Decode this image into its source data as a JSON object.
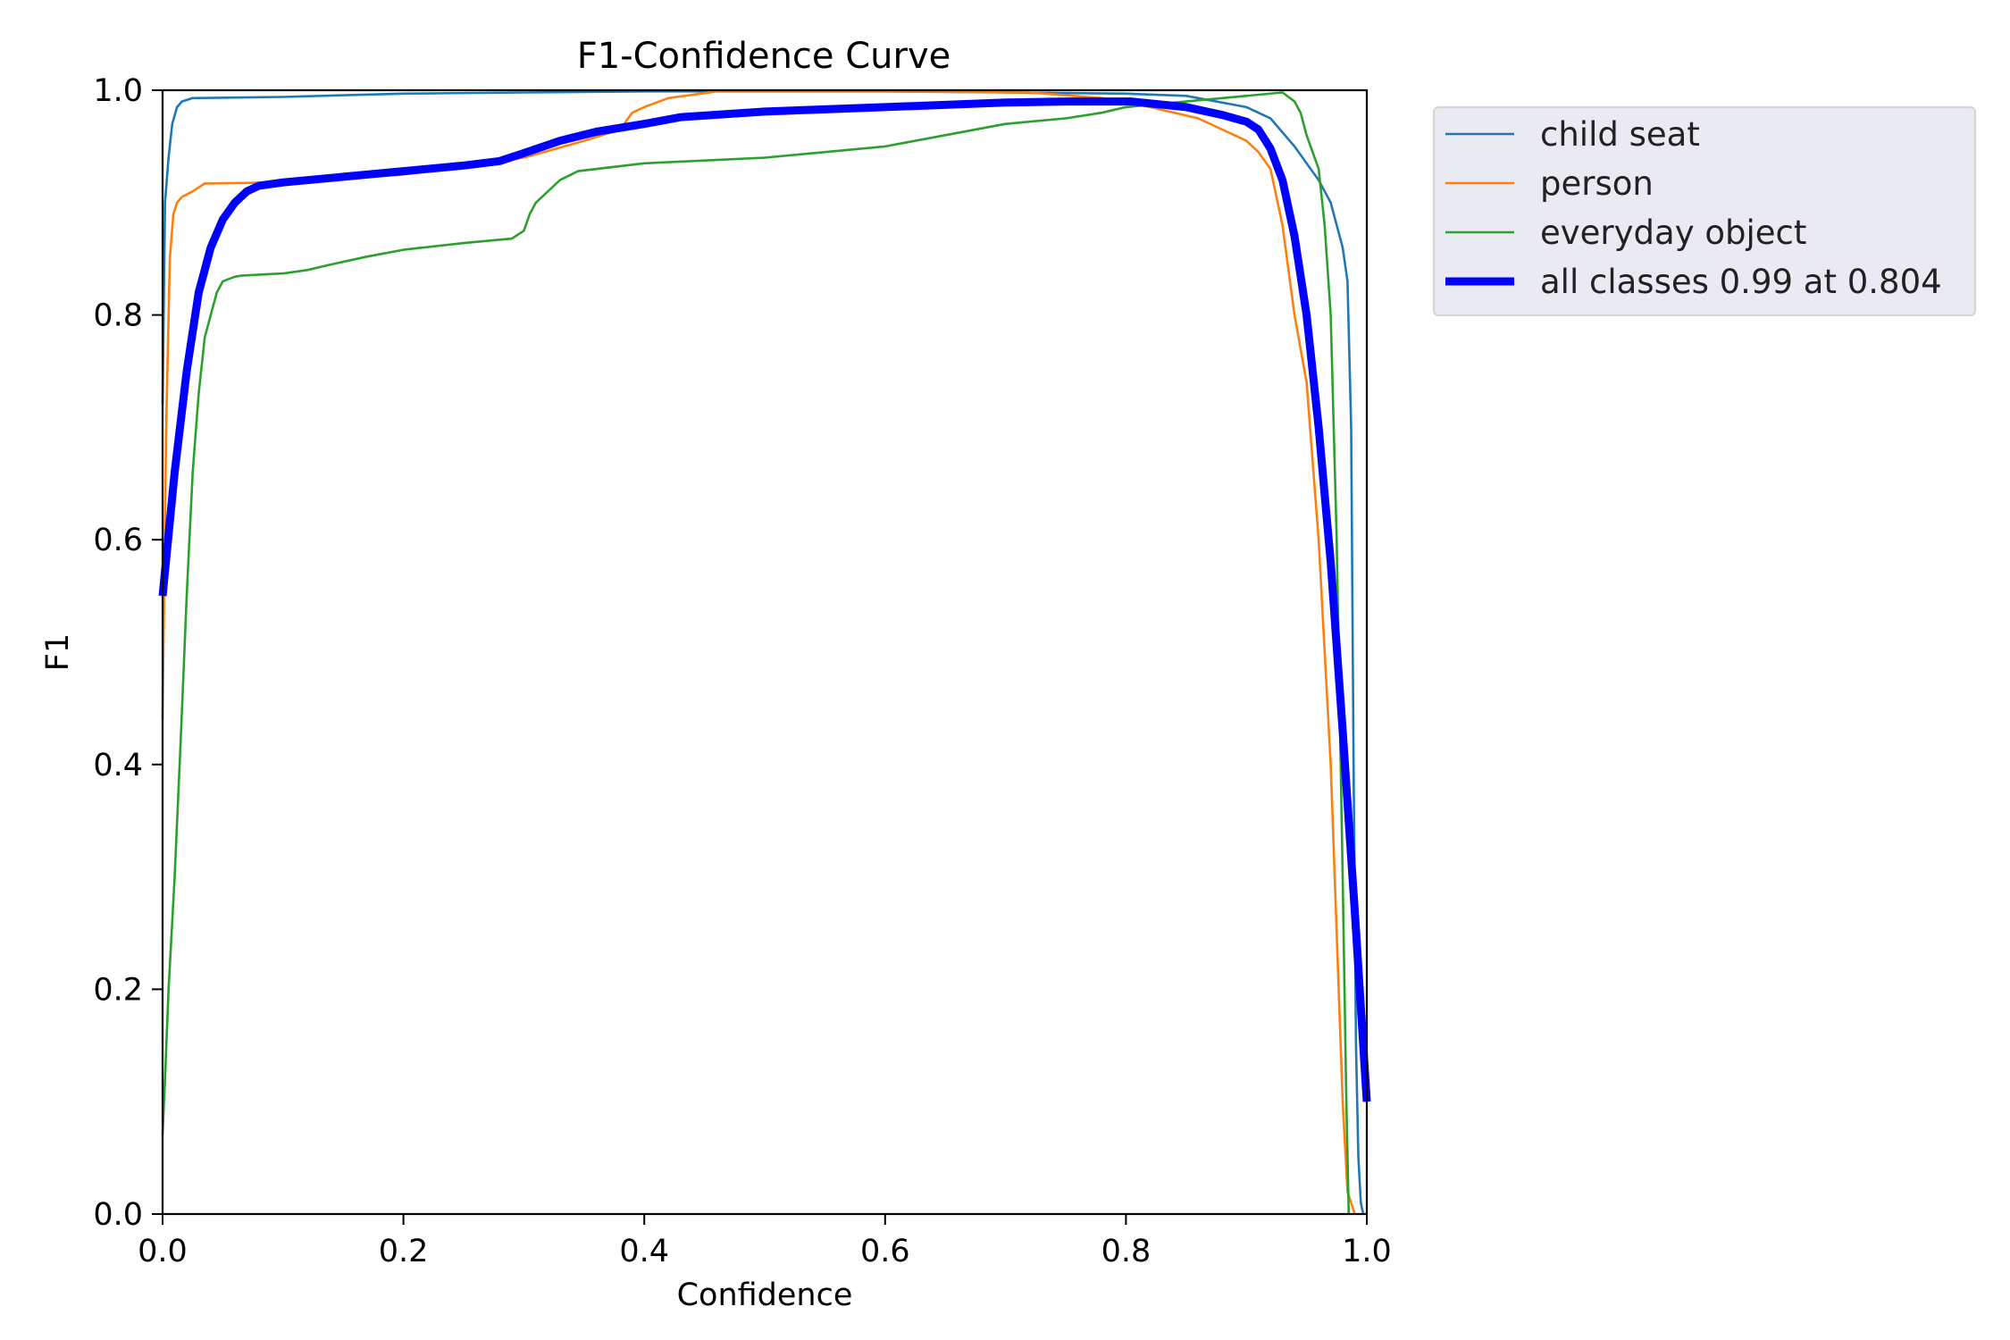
{
  "chart_data": {
    "type": "line",
    "title": "F1-Confidence Curve",
    "xlabel": "Confidence",
    "ylabel": "F1",
    "xlim": [
      0,
      1
    ],
    "ylim": [
      0,
      1
    ],
    "xticks": [
      "0.0",
      "0.2",
      "0.4",
      "0.6",
      "0.8",
      "1.0"
    ],
    "yticks": [
      "0.0",
      "0.2",
      "0.4",
      "0.6",
      "0.8",
      "1.0"
    ],
    "grid": false,
    "legend_position": "outside-top-right",
    "series": [
      {
        "name": "child seat",
        "color": "#1f77b4",
        "width": "thin",
        "x": [
          0.0,
          0.002,
          0.005,
          0.008,
          0.012,
          0.016,
          0.025,
          0.1,
          0.2,
          0.3,
          0.4,
          0.5,
          0.6,
          0.7,
          0.8,
          0.85,
          0.9,
          0.92,
          0.94,
          0.96,
          0.97,
          0.975,
          0.98,
          0.984,
          0.987,
          0.989,
          0.991,
          0.993,
          0.995,
          0.997
        ],
        "y": [
          0.72,
          0.9,
          0.94,
          0.97,
          0.985,
          0.99,
          0.993,
          0.994,
          0.997,
          0.998,
          0.999,
          0.999,
          0.999,
          0.998,
          0.997,
          0.995,
          0.985,
          0.975,
          0.95,
          0.92,
          0.9,
          0.88,
          0.86,
          0.83,
          0.7,
          0.4,
          0.15,
          0.05,
          0.01,
          0.0
        ]
      },
      {
        "name": "person",
        "color": "#ff7f0e",
        "width": "thin",
        "x": [
          0.0,
          0.003,
          0.006,
          0.009,
          0.012,
          0.016,
          0.025,
          0.035,
          0.1,
          0.2,
          0.3,
          0.35,
          0.38,
          0.39,
          0.4,
          0.42,
          0.46,
          0.6,
          0.72,
          0.78,
          0.82,
          0.86,
          0.88,
          0.9,
          0.91,
          0.92,
          0.93,
          0.94,
          0.95,
          0.96,
          0.97,
          0.975,
          0.98,
          0.984,
          0.987,
          0.99
        ],
        "y": [
          0.44,
          0.7,
          0.85,
          0.89,
          0.9,
          0.905,
          0.91,
          0.917,
          0.918,
          0.925,
          0.94,
          0.955,
          0.965,
          0.98,
          0.985,
          0.993,
          0.999,
          0.999,
          0.998,
          0.993,
          0.985,
          0.975,
          0.965,
          0.955,
          0.945,
          0.93,
          0.88,
          0.8,
          0.74,
          0.6,
          0.4,
          0.25,
          0.1,
          0.02,
          0.01,
          0.0
        ]
      },
      {
        "name": "everyday object",
        "color": "#2ca02c",
        "width": "thin",
        "x": [
          0.0,
          0.002,
          0.005,
          0.01,
          0.015,
          0.02,
          0.025,
          0.03,
          0.035,
          0.04,
          0.045,
          0.05,
          0.055,
          0.06,
          0.065,
          0.1,
          0.12,
          0.14,
          0.17,
          0.2,
          0.25,
          0.29,
          0.3,
          0.305,
          0.31,
          0.32,
          0.33,
          0.345,
          0.4,
          0.5,
          0.6,
          0.65,
          0.7,
          0.75,
          0.78,
          0.8,
          0.85,
          0.9,
          0.93,
          0.94,
          0.945,
          0.95,
          0.96,
          0.965,
          0.97,
          0.975,
          0.98,
          0.983,
          0.985
        ],
        "y": [
          0.07,
          0.12,
          0.2,
          0.3,
          0.42,
          0.55,
          0.66,
          0.73,
          0.78,
          0.8,
          0.82,
          0.83,
          0.832,
          0.834,
          0.835,
          0.837,
          0.84,
          0.845,
          0.852,
          0.858,
          0.864,
          0.868,
          0.875,
          0.89,
          0.9,
          0.91,
          0.92,
          0.928,
          0.935,
          0.94,
          0.95,
          0.96,
          0.97,
          0.975,
          0.98,
          0.985,
          0.99,
          0.995,
          0.998,
          0.99,
          0.98,
          0.96,
          0.93,
          0.88,
          0.8,
          0.6,
          0.3,
          0.1,
          0.0
        ]
      },
      {
        "name": "all classes 0.99 at 0.804",
        "color": "#0000ff",
        "width": "thick",
        "x": [
          0.0,
          0.01,
          0.02,
          0.03,
          0.04,
          0.05,
          0.06,
          0.07,
          0.08,
          0.1,
          0.15,
          0.2,
          0.25,
          0.28,
          0.3,
          0.33,
          0.36,
          0.4,
          0.43,
          0.5,
          0.6,
          0.7,
          0.75,
          0.804,
          0.85,
          0.88,
          0.9,
          0.91,
          0.92,
          0.93,
          0.94,
          0.95,
          0.96,
          0.97,
          0.98,
          0.99,
          1.0
        ],
        "y": [
          0.55,
          0.66,
          0.75,
          0.82,
          0.86,
          0.885,
          0.9,
          0.91,
          0.915,
          0.918,
          0.923,
          0.928,
          0.933,
          0.937,
          0.944,
          0.955,
          0.963,
          0.97,
          0.976,
          0.981,
          0.985,
          0.989,
          0.99,
          0.99,
          0.985,
          0.978,
          0.972,
          0.965,
          0.948,
          0.92,
          0.87,
          0.8,
          0.7,
          0.58,
          0.43,
          0.27,
          0.1
        ]
      }
    ]
  }
}
